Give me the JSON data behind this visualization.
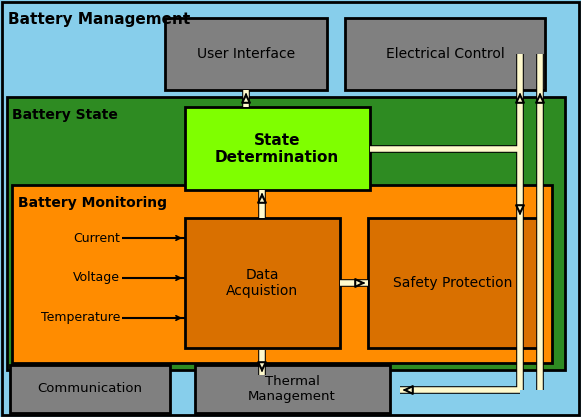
{
  "bg_color": "#87CEEB",
  "green_state_color": "#2E8B22",
  "orange_monitor_color": "#FF8C00",
  "lime_state_det_color": "#7FFF00",
  "dark_orange_box_color": "#D97000",
  "gray_box_color": "#808080",
  "arrow_fill": "#FFFACD",
  "labels": {
    "battery_management": "Battery Management",
    "battery_state": "Battery State",
    "battery_monitoring": "Battery Monitoring",
    "state_determination": "State\nDetermination",
    "data_acquisition": "Data\nAcquistion",
    "safety_protection": "Safety Protection",
    "user_interface": "User Interface",
    "electrical_control": "Electrical Control",
    "communication": "Communication",
    "thermal_management": "Thermal\nManagement",
    "current": "Current",
    "voltage": "Voltage",
    "temperature": "Temperature"
  }
}
